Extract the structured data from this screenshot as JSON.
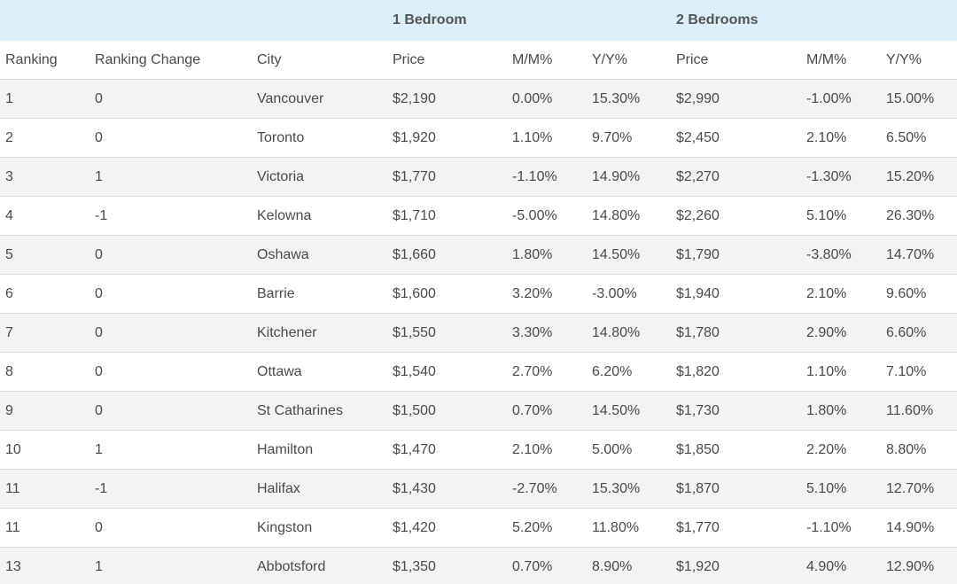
{
  "groups": {
    "one_bedroom": "1 Bedroom",
    "two_bedrooms": "2 Bedrooms"
  },
  "columns": [
    "Ranking",
    "Ranking Change",
    "City",
    "Price",
    "M/M%",
    "Y/Y%",
    "Price",
    "M/M%",
    "Y/Y%"
  ],
  "rows": [
    [
      "1",
      "0",
      "Vancouver",
      "$2,190",
      "0.00%",
      "15.30%",
      "$2,990",
      "-1.00%",
      "15.00%"
    ],
    [
      "2",
      "0",
      "Toronto",
      "$1,920",
      "1.10%",
      "9.70%",
      "$2,450",
      "2.10%",
      "6.50%"
    ],
    [
      "3",
      "1",
      "Victoria",
      "$1,770",
      "-1.10%",
      "14.90%",
      "$2,270",
      "-1.30%",
      "15.20%"
    ],
    [
      "4",
      "-1",
      "Kelowna",
      "$1,710",
      "-5.00%",
      "14.80%",
      "$2,260",
      "5.10%",
      "26.30%"
    ],
    [
      "5",
      "0",
      "Oshawa",
      "$1,660",
      "1.80%",
      "14.50%",
      "$1,790",
      "-3.80%",
      "14.70%"
    ],
    [
      "6",
      "0",
      "Barrie",
      "$1,600",
      "3.20%",
      "-3.00%",
      "$1,940",
      "2.10%",
      "9.60%"
    ],
    [
      "7",
      "0",
      "Kitchener",
      "$1,550",
      "3.30%",
      "14.80%",
      "$1,780",
      "2.90%",
      "6.60%"
    ],
    [
      "8",
      "0",
      "Ottawa",
      "$1,540",
      "2.70%",
      "6.20%",
      "$1,820",
      "1.10%",
      "7.10%"
    ],
    [
      "9",
      "0",
      "St Catharines",
      "$1,500",
      "0.70%",
      "14.50%",
      "$1,730",
      "1.80%",
      "11.60%"
    ],
    [
      "10",
      "1",
      "Hamilton",
      "$1,470",
      "2.10%",
      "5.00%",
      "$1,850",
      "2.20%",
      "8.80%"
    ],
    [
      "11",
      "-1",
      "Halifax",
      "$1,430",
      "-2.70%",
      "15.30%",
      "$1,870",
      "5.10%",
      "12.70%"
    ],
    [
      "11",
      "0",
      "Kingston",
      "$1,420",
      "5.20%",
      "11.80%",
      "$1,770",
      "-1.10%",
      "14.90%"
    ],
    [
      "13",
      "1",
      "Abbotsford",
      "$1,350",
      "0.70%",
      "8.90%",
      "$1,920",
      "4.90%",
      "12.90%"
    ]
  ],
  "colors": {
    "header_bg": "#dceef7",
    "row_odd": "#f3f3f3",
    "row_even": "#ffffff"
  }
}
